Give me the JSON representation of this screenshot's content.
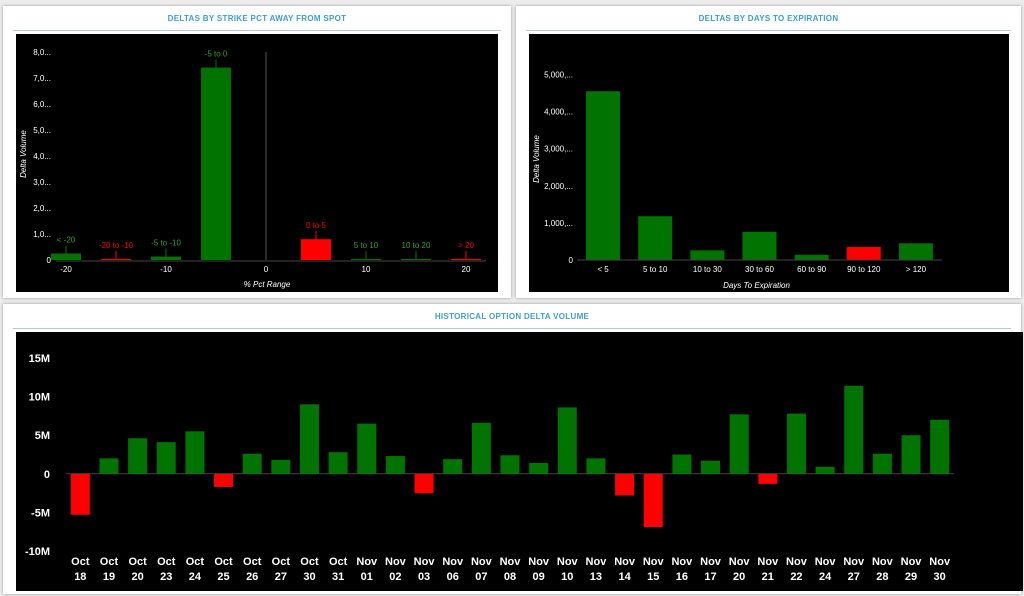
{
  "colors": {
    "positive": "#007300",
    "negative": "#ff0000",
    "title": "#3f9fc7",
    "axis_text": "#ffffff",
    "background": "#000000"
  },
  "panels": {
    "strike": {
      "title": "DELTAS BY STRIKE PCT AWAY FROM SPOT"
    },
    "expiration": {
      "title": "DELTAS BY DAYS TO EXPIRATION"
    },
    "history": {
      "title": "HISTORICAL OPTION DELTA VOLUME"
    }
  },
  "chart_data": [
    {
      "type": "bar",
      "title": "DELTAS BY STRIKE PCT AWAY FROM SPOT",
      "xlabel": "% Pct Range",
      "ylabel": "Delta Volume",
      "x_ticks": [
        "-20",
        "-10",
        "0",
        "10",
        "20"
      ],
      "y_ticks": [
        "0",
        "1,0...",
        "2,0...",
        "3,0...",
        "4,0...",
        "5,0...",
        "6,0...",
        "7,0...",
        "8,0..."
      ],
      "ylim": [
        0,
        8000
      ],
      "grid": false,
      "bars": [
        {
          "label": "< -20",
          "x": -20,
          "value": 250,
          "sign": "positive"
        },
        {
          "label": "-20 to -10",
          "x": -15,
          "value": 40,
          "sign": "negative"
        },
        {
          "label": "-5 to -10",
          "x": -10,
          "value": 130,
          "sign": "positive"
        },
        {
          "label": "-5 to 0",
          "x": -5,
          "value": 7400,
          "sign": "positive"
        },
        {
          "label": "0 to 5",
          "x": 5,
          "value": 800,
          "sign": "negative"
        },
        {
          "label": "5 to 10",
          "x": 10,
          "value": 15,
          "sign": "positive"
        },
        {
          "label": "10 to 20",
          "x": 15,
          "value": 15,
          "sign": "positive"
        },
        {
          "label": "> 20",
          "x": 20,
          "value": 10,
          "sign": "negative"
        }
      ]
    },
    {
      "type": "bar",
      "title": "DELTAS BY DAYS TO EXPIRATION",
      "xlabel": "Days To Expiration",
      "ylabel": "Delta Volume",
      "categories": [
        "< 5",
        "5 to 10",
        "10 to 30",
        "30 to 60",
        "60 to 90",
        "90 to 120",
        "> 120"
      ],
      "values": [
        4550,
        1180,
        260,
        760,
        140,
        350,
        450
      ],
      "signs": [
        "positive",
        "positive",
        "positive",
        "positive",
        "positive",
        "negative",
        "positive"
      ],
      "y_ticks": [
        "0",
        "1,000,...",
        "2,000,...",
        "3,000,...",
        "4,000,...",
        "5,000,..."
      ],
      "ylim": [
        0,
        5500
      ],
      "grid": false
    },
    {
      "type": "bar",
      "title": "HISTORICAL OPTION DELTA VOLUME",
      "categories": [
        [
          "Oct",
          "18"
        ],
        [
          "Oct",
          "19"
        ],
        [
          "Oct",
          "20"
        ],
        [
          "Oct",
          "23"
        ],
        [
          "Oct",
          "24"
        ],
        [
          "Oct",
          "25"
        ],
        [
          "Oct",
          "26"
        ],
        [
          "Oct",
          "27"
        ],
        [
          "Oct",
          "30"
        ],
        [
          "Oct",
          "31"
        ],
        [
          "Nov",
          "01"
        ],
        [
          "Nov",
          "02"
        ],
        [
          "Nov",
          "03"
        ],
        [
          "Nov",
          "06"
        ],
        [
          "Nov",
          "07"
        ],
        [
          "Nov",
          "08"
        ],
        [
          "Nov",
          "09"
        ],
        [
          "Nov",
          "10"
        ],
        [
          "Nov",
          "13"
        ],
        [
          "Nov",
          "14"
        ],
        [
          "Nov",
          "15"
        ],
        [
          "Nov",
          "16"
        ],
        [
          "Nov",
          "17"
        ],
        [
          "Nov",
          "20"
        ],
        [
          "Nov",
          "21"
        ],
        [
          "Nov",
          "22"
        ],
        [
          "Nov",
          "24"
        ],
        [
          "Nov",
          "27"
        ],
        [
          "Nov",
          "28"
        ],
        [
          "Nov",
          "29"
        ],
        [
          "Nov",
          "30"
        ]
      ],
      "values": [
        -5.3,
        2.0,
        4.6,
        4.1,
        5.5,
        -1.7,
        2.6,
        1.8,
        9.0,
        2.8,
        6.5,
        2.3,
        -2.5,
        1.9,
        6.6,
        2.4,
        1.4,
        8.6,
        2.0,
        -2.8,
        -6.9,
        2.5,
        1.7,
        7.7,
        -1.3,
        7.8,
        0.9,
        11.4,
        2.6,
        5.0,
        7.0
      ],
      "y_ticks": [
        "15M",
        "10M",
        "5M",
        "0",
        "-5M",
        "-10M"
      ],
      "ylim": [
        -10,
        15
      ],
      "y_unit": "M",
      "grid": false
    }
  ]
}
